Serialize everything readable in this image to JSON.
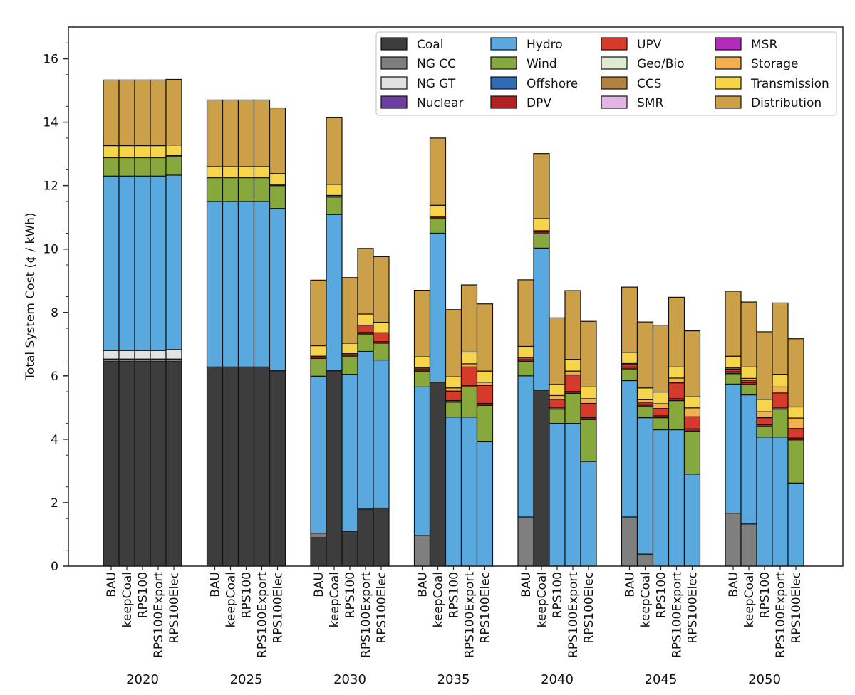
{
  "chart_data": {
    "type": "bar",
    "stacked": true,
    "ylabel": "Total System Cost (¢ / kWh)",
    "ylim": [
      0,
      17
    ],
    "yticks": [
      0,
      2,
      4,
      6,
      8,
      10,
      12,
      14,
      16
    ],
    "grid": false,
    "legend_position": "top-right",
    "groups": [
      "2020",
      "2025",
      "2030",
      "2035",
      "2040",
      "2045",
      "2050"
    ],
    "scenarios": [
      "BAU",
      "keepCoal",
      "RPS100",
      "RPS100Export",
      "RPS100Elec"
    ],
    "components": [
      {
        "name": "Coal",
        "color": "#3d3d3d"
      },
      {
        "name": "NG CC",
        "color": "#7f7f7f"
      },
      {
        "name": "NG GT",
        "color": "#e2e2e2"
      },
      {
        "name": "Nuclear",
        "color": "#6b3fa0"
      },
      {
        "name": "Hydro",
        "color": "#5aa9de"
      },
      {
        "name": "Wind",
        "color": "#86a83c"
      },
      {
        "name": "Offshore",
        "color": "#2f6cb5"
      },
      {
        "name": "DPV",
        "color": "#b22222"
      },
      {
        "name": "UPV",
        "color": "#d63a2a"
      },
      {
        "name": "Geo/Bio",
        "color": "#dcebd2"
      },
      {
        "name": "CCS",
        "color": "#b08440"
      },
      {
        "name": "SMR",
        "color": "#e3b5e3"
      },
      {
        "name": "MSR",
        "color": "#b12ab8"
      },
      {
        "name": "Storage",
        "color": "#f2b04f"
      },
      {
        "name": "Transmission",
        "color": "#f7d54a"
      },
      {
        "name": "Distribution",
        "color": "#cba049"
      }
    ],
    "series_order": [
      "Coal",
      "NG CC",
      "NG GT",
      "Nuclear",
      "Hydro",
      "Wind",
      "Offshore",
      "DPV",
      "UPV",
      "Geo/Bio",
      "CCS",
      "SMR",
      "MSR",
      "Storage",
      "Transmission",
      "Distribution"
    ],
    "bars": [
      {
        "group": "2020",
        "scenario": "BAU",
        "values": {
          "Coal": 6.45,
          "NG CC": 0.08,
          "NG GT": 0.27,
          "Hydro": 5.5,
          "Wind": 0.58,
          "Transmission": 0.38,
          "Distribution": 2.07
        }
      },
      {
        "group": "2020",
        "scenario": "keepCoal",
        "values": {
          "Coal": 6.45,
          "NG CC": 0.08,
          "NG GT": 0.27,
          "Hydro": 5.5,
          "Wind": 0.58,
          "Transmission": 0.38,
          "Distribution": 2.07
        }
      },
      {
        "group": "2020",
        "scenario": "RPS100",
        "values": {
          "Coal": 6.45,
          "NG CC": 0.08,
          "NG GT": 0.27,
          "Hydro": 5.5,
          "Wind": 0.58,
          "Transmission": 0.38,
          "Distribution": 2.07
        }
      },
      {
        "group": "2020",
        "scenario": "RPS100Export",
        "values": {
          "Coal": 6.45,
          "NG CC": 0.08,
          "NG GT": 0.27,
          "Hydro": 5.5,
          "Wind": 0.58,
          "Transmission": 0.38,
          "Distribution": 2.07
        }
      },
      {
        "group": "2020",
        "scenario": "RPS100Elec",
        "values": {
          "Coal": 6.45,
          "NG CC": 0.08,
          "NG GT": 0.3,
          "Hydro": 5.5,
          "Wind": 0.58,
          "DPV": 0.04,
          "Transmission": 0.33,
          "Distribution": 2.07
        }
      },
      {
        "group": "2025",
        "scenario": "BAU",
        "values": {
          "Coal": 6.28,
          "Hydro": 5.22,
          "Wind": 0.75,
          "Transmission": 0.35,
          "Distribution": 2.1
        }
      },
      {
        "group": "2025",
        "scenario": "keepCoal",
        "values": {
          "Coal": 6.28,
          "Hydro": 5.22,
          "Wind": 0.75,
          "Transmission": 0.35,
          "Distribution": 2.1
        }
      },
      {
        "group": "2025",
        "scenario": "RPS100",
        "values": {
          "Coal": 6.28,
          "Hydro": 5.22,
          "Wind": 0.75,
          "Transmission": 0.35,
          "Distribution": 2.1
        }
      },
      {
        "group": "2025",
        "scenario": "RPS100Export",
        "values": {
          "Coal": 6.28,
          "Hydro": 5.22,
          "Wind": 0.75,
          "Transmission": 0.35,
          "Distribution": 2.1
        }
      },
      {
        "group": "2025",
        "scenario": "RPS100Elec",
        "values": {
          "Coal": 6.16,
          "Hydro": 5.12,
          "Wind": 0.72,
          "DPV": 0.04,
          "Transmission": 0.34,
          "Distribution": 2.07
        }
      },
      {
        "group": "2030",
        "scenario": "BAU",
        "values": {
          "Coal": 0.9,
          "NG CC": 0.14,
          "Hydro": 4.95,
          "Wind": 0.56,
          "DPV": 0.05,
          "UPV": 0.02,
          "Transmission": 0.33,
          "Distribution": 2.07
        }
      },
      {
        "group": "2030",
        "scenario": "keepCoal",
        "values": {
          "Coal": 6.16,
          "Hydro": 4.93,
          "Wind": 0.55,
          "DPV": 0.05,
          "Transmission": 0.35,
          "Distribution": 2.1
        }
      },
      {
        "group": "2030",
        "scenario": "RPS100",
        "values": {
          "Coal": 1.1,
          "Hydro": 4.95,
          "Wind": 0.55,
          "DPV": 0.05,
          "UPV": 0.05,
          "Transmission": 0.33,
          "Distribution": 2.07
        }
      },
      {
        "group": "2030",
        "scenario": "RPS100Export",
        "values": {
          "Coal": 1.8,
          "Hydro": 4.97,
          "Wind": 0.55,
          "DPV": 0.05,
          "UPV": 0.23,
          "Transmission": 0.35,
          "Distribution": 2.07
        }
      },
      {
        "group": "2030",
        "scenario": "RPS100Elec",
        "values": {
          "Coal": 1.83,
          "Hydro": 4.67,
          "Wind": 0.53,
          "DPV": 0.05,
          "UPV": 0.28,
          "Transmission": 0.33,
          "Distribution": 2.07
        }
      },
      {
        "group": "2035",
        "scenario": "BAU",
        "values": {
          "NG CC": 0.97,
          "Hydro": 4.68,
          "Wind": 0.5,
          "DPV": 0.05,
          "UPV": 0.05,
          "Transmission": 0.35,
          "Distribution": 2.1
        }
      },
      {
        "group": "2035",
        "scenario": "keepCoal",
        "values": {
          "Coal": 5.8,
          "Hydro": 4.7,
          "Wind": 0.48,
          "DPV": 0.05,
          "Transmission": 0.35,
          "Distribution": 2.12
        }
      },
      {
        "group": "2035",
        "scenario": "RPS100",
        "values": {
          "Hydro": 4.7,
          "Wind": 0.47,
          "DPV": 0.05,
          "UPV": 0.3,
          "Storage": 0.1,
          "Transmission": 0.35,
          "Distribution": 2.12
        }
      },
      {
        "group": "2035",
        "scenario": "RPS100Export",
        "values": {
          "Hydro": 4.7,
          "Wind": 0.95,
          "DPV": 0.05,
          "UPV": 0.58,
          "Storage": 0.1,
          "Transmission": 0.37,
          "Distribution": 2.12
        }
      },
      {
        "group": "2035",
        "scenario": "RPS100Elec",
        "values": {
          "Hydro": 3.92,
          "Wind": 1.15,
          "DPV": 0.06,
          "UPV": 0.57,
          "Storage": 0.1,
          "Transmission": 0.35,
          "Distribution": 2.12
        }
      },
      {
        "group": "2040",
        "scenario": "BAU",
        "values": {
          "NG CC": 1.55,
          "Hydro": 4.45,
          "Wind": 0.46,
          "DPV": 0.05,
          "UPV": 0.07,
          "Transmission": 0.35,
          "Distribution": 2.1
        }
      },
      {
        "group": "2040",
        "scenario": "keepCoal",
        "values": {
          "Coal": 5.55,
          "Hydro": 4.48,
          "Wind": 0.45,
          "DPV": 0.06,
          "UPV": 0.04,
          "Transmission": 0.38,
          "Distribution": 2.05
        }
      },
      {
        "group": "2040",
        "scenario": "RPS100",
        "values": {
          "Hydro": 4.5,
          "Wind": 0.45,
          "DPV": 0.06,
          "UPV": 0.25,
          "Storage": 0.12,
          "Transmission": 0.35,
          "Distribution": 2.1
        }
      },
      {
        "group": "2040",
        "scenario": "RPS100Export",
        "values": {
          "Hydro": 4.5,
          "Wind": 0.95,
          "DPV": 0.06,
          "UPV": 0.52,
          "Storage": 0.12,
          "Transmission": 0.37,
          "Distribution": 2.17
        }
      },
      {
        "group": "2040",
        "scenario": "RPS100Elec",
        "values": {
          "Hydro": 3.3,
          "Wind": 1.32,
          "DPV": 0.06,
          "UPV": 0.45,
          "Storage": 0.15,
          "Transmission": 0.37,
          "Distribution": 2.07
        }
      },
      {
        "group": "2045",
        "scenario": "BAU",
        "values": {
          "NG CC": 1.55,
          "Hydro": 4.3,
          "Wind": 0.37,
          "DPV": 0.06,
          "UPV": 0.08,
          "Storage": 0.03,
          "Transmission": 0.35,
          "Distribution": 2.06
        }
      },
      {
        "group": "2045",
        "scenario": "keepCoal",
        "values": {
          "NG CC": 0.38,
          "Hydro": 4.3,
          "Wind": 0.37,
          "DPV": 0.06,
          "UPV": 0.06,
          "Storage": 0.08,
          "Transmission": 0.37,
          "Distribution": 2.08
        }
      },
      {
        "group": "2045",
        "scenario": "RPS100",
        "values": {
          "Hydro": 4.3,
          "Wind": 0.38,
          "DPV": 0.06,
          "UPV": 0.23,
          "Storage": 0.15,
          "Transmission": 0.37,
          "Distribution": 2.11
        }
      },
      {
        "group": "2045",
        "scenario": "RPS100Export",
        "values": {
          "Hydro": 4.3,
          "Wind": 0.92,
          "DPV": 0.06,
          "UPV": 0.5,
          "Storage": 0.15,
          "Transmission": 0.35,
          "Distribution": 2.2
        }
      },
      {
        "group": "2045",
        "scenario": "RPS100Elec",
        "values": {
          "Hydro": 2.9,
          "Wind": 1.36,
          "DPV": 0.07,
          "UPV": 0.38,
          "Storage": 0.28,
          "Transmission": 0.35,
          "Distribution": 2.08
        }
      },
      {
        "group": "2050",
        "scenario": "BAU",
        "values": {
          "NG CC": 1.67,
          "Hydro": 4.07,
          "Wind": 0.33,
          "DPV": 0.06,
          "UPV": 0.08,
          "Storage": 0.04,
          "Transmission": 0.37,
          "Distribution": 2.05
        }
      },
      {
        "group": "2050",
        "scenario": "keepCoal",
        "values": {
          "NG CC": 1.33,
          "Hydro": 4.07,
          "Wind": 0.33,
          "DPV": 0.06,
          "UPV": 0.07,
          "Storage": 0.06,
          "Transmission": 0.36,
          "Distribution": 2.05
        }
      },
      {
        "group": "2050",
        "scenario": "RPS100",
        "values": {
          "Hydro": 4.07,
          "Wind": 0.33,
          "DPV": 0.06,
          "UPV": 0.22,
          "Storage": 0.19,
          "Transmission": 0.39,
          "Distribution": 2.13
        }
      },
      {
        "group": "2050",
        "scenario": "RPS100Export",
        "values": {
          "Hydro": 4.07,
          "Wind": 0.88,
          "DPV": 0.06,
          "UPV": 0.45,
          "Storage": 0.19,
          "Transmission": 0.4,
          "Distribution": 2.25
        }
      },
      {
        "group": "2050",
        "scenario": "RPS100Elec",
        "values": {
          "Hydro": 2.62,
          "Wind": 1.36,
          "DPV": 0.06,
          "UPV": 0.3,
          "Storage": 0.33,
          "Transmission": 0.35,
          "Distribution": 2.15
        }
      }
    ]
  }
}
